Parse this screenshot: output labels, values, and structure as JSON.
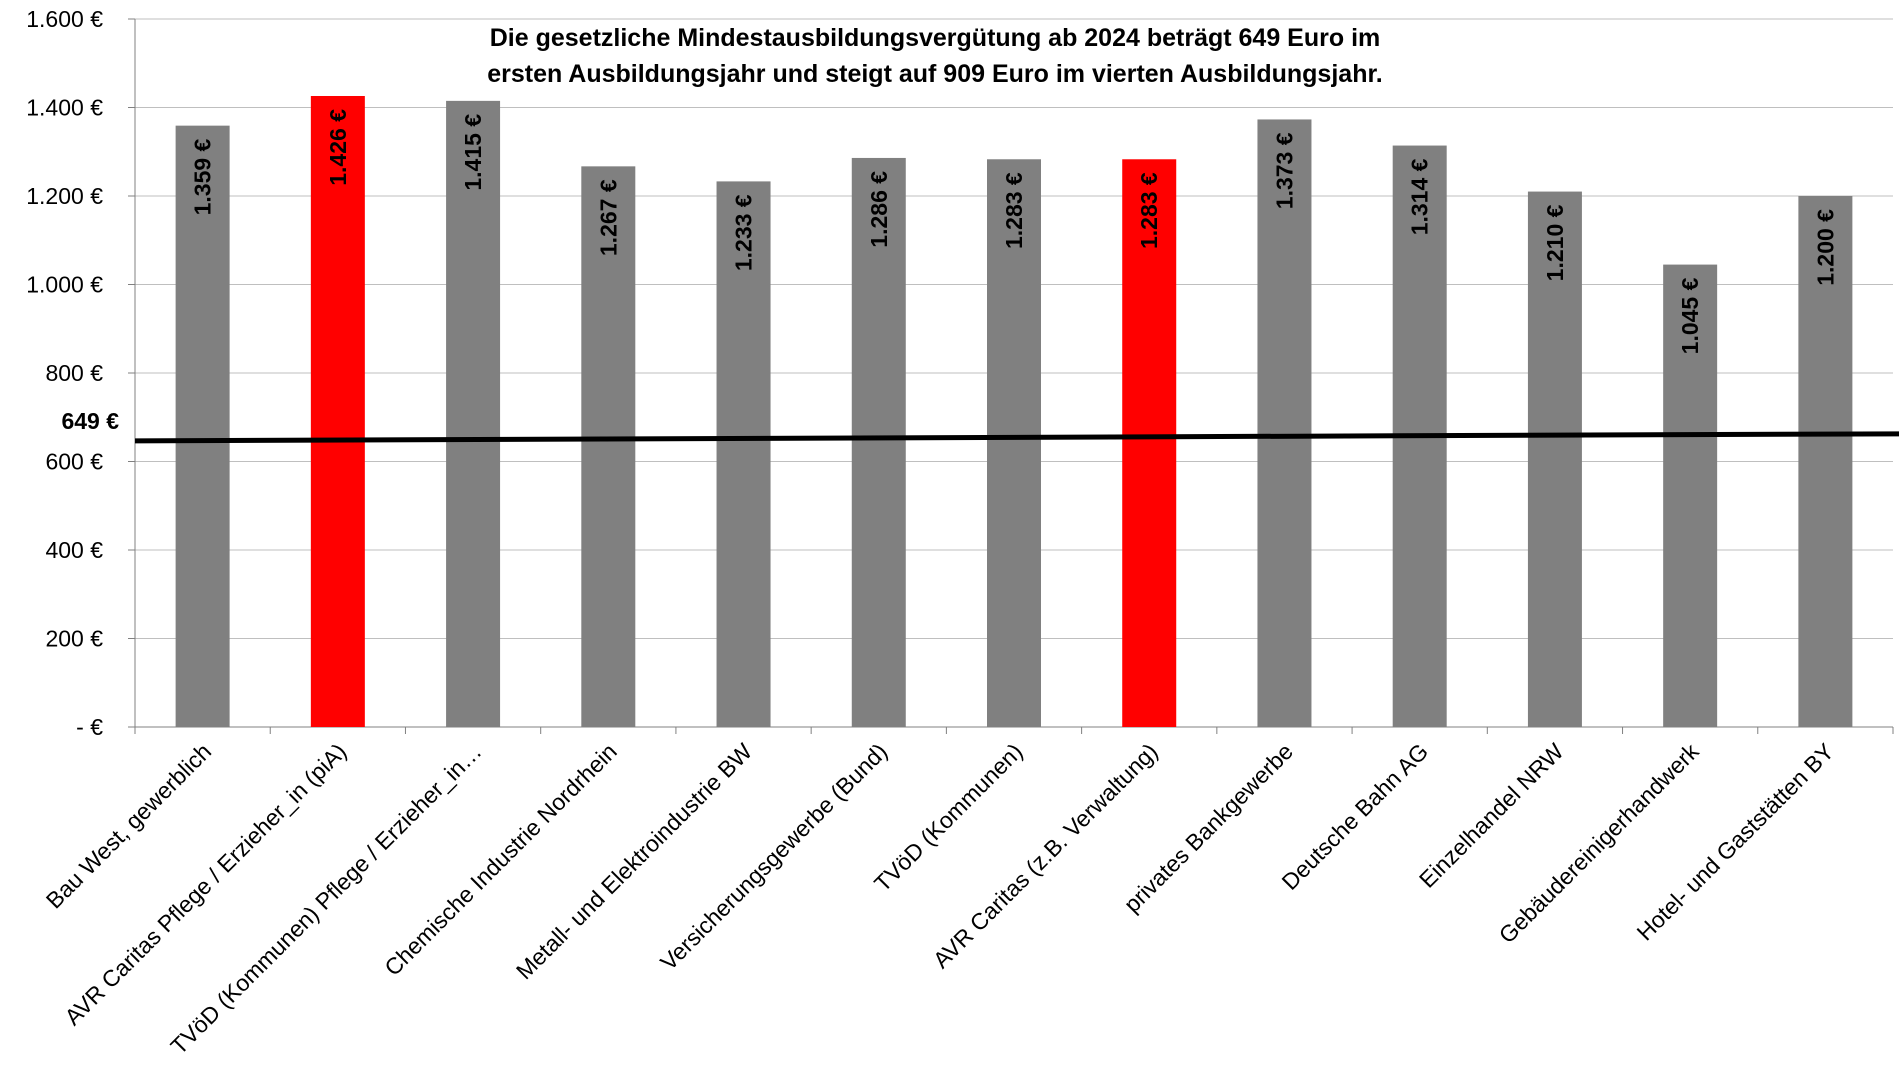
{
  "chart_data": {
    "type": "bar",
    "title_lines": [
      "Die gesetzliche Mindestausbildungsvergütung ab 2024 beträgt 649 Euro im",
      "ersten Ausbildungsjahr und steigt auf 909 Euro im vierten Ausbildungsjahr."
    ],
    "categories": [
      "Bau West, gewerblich",
      "AVR Caritas Pflege / Erzieher_in (piA)",
      "TVöD (Kommunen) Pflege / Erzieher_in…",
      "Chemische Industrie Nordrhein",
      "Metall- und Elektroindustrie BW",
      "Versicherungsgewerbe (Bund)",
      "TVöD (Kommunen)",
      "AVR Caritas (z.B. Verwaltung)",
      "privates Bankgewerbe",
      "Deutsche Bahn AG",
      "Einzelhandel NRW",
      "Gebäudereinigerhandwerk",
      "Hotel- und Gaststätten BY"
    ],
    "values": [
      1359,
      1426,
      1415,
      1267,
      1233,
      1286,
      1283,
      1283,
      1373,
      1314,
      1210,
      1045,
      1200
    ],
    "data_labels": [
      "1.359 €",
      "1.426 €",
      "1.415 €",
      "1.267 €",
      "1.233 €",
      "1.286 €",
      "1.283 €",
      "1.283 €",
      "1.373 €",
      "1.314 €",
      "1.210 €",
      "1.045 €",
      "1.200 €"
    ],
    "highlight_indices": [
      1,
      7
    ],
    "colors": {
      "default": "#808080",
      "highlight": "#ff0000",
      "reference_line": "#000000",
      "grid": "#bfbfbf"
    },
    "ylim": [
      0,
      1600
    ],
    "y_ticks": [
      0,
      200,
      400,
      600,
      800,
      1000,
      1200,
      1400,
      1600
    ],
    "y_tick_labels": [
      "-   €",
      "200 €",
      "400 €",
      "600 €",
      "800 €",
      "1.000 €",
      "1.200 €",
      "1.400 €",
      "1.600 €"
    ],
    "reference_line": {
      "value": 649,
      "label": "649 €"
    },
    "grid": true,
    "xlabel": "",
    "ylabel": ""
  }
}
